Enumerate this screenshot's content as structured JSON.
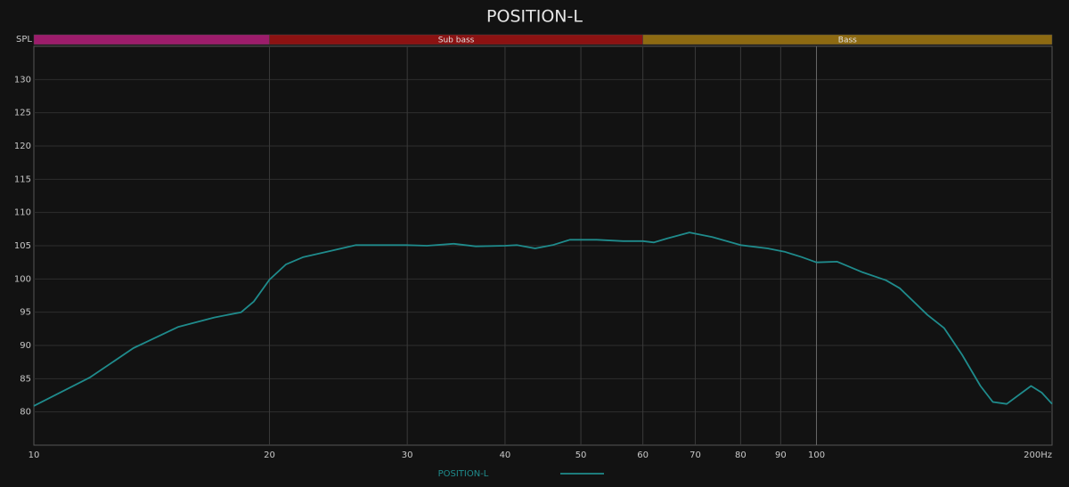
{
  "chart_data": {
    "type": "line",
    "title": "POSITION-L",
    "ylabel": "SPL",
    "x": [
      10,
      11.8,
      13.4,
      15.3,
      17.0,
      18.4,
      19.1,
      20,
      21.0,
      22.1,
      23.9,
      25.8,
      29.9,
      31.8,
      34.4,
      36.7,
      40,
      41.4,
      43.7,
      46.0,
      48.4,
      52.4,
      56.6,
      60,
      62,
      64.5,
      68.8,
      73.6,
      80,
      86.6,
      91,
      95.7,
      100,
      106.3,
      114.6,
      122.7,
      127.8,
      138.6,
      145.6,
      153.5,
      162,
      168,
      175,
      188,
      194,
      200
    ],
    "series": [
      {
        "name": "POSITION-L",
        "color": "#1f8b8c",
        "values": [
          80.9,
          85.2,
          89.6,
          92.8,
          94.2,
          95.0,
          96.6,
          99.9,
          102.2,
          103.3,
          104.2,
          105.1,
          105.1,
          105.0,
          105.3,
          104.9,
          105.0,
          105.1,
          104.6,
          105.1,
          105.9,
          105.9,
          105.7,
          105.7,
          105.5,
          106.1,
          107.0,
          106.3,
          105.1,
          104.6,
          104.1,
          103.3,
          102.5,
          102.6,
          101.0,
          99.8,
          98.6,
          94.6,
          92.6,
          88.6,
          83.9,
          81.5,
          81.2,
          83.9,
          82.9,
          81.2
        ]
      }
    ],
    "xlim": [
      10,
      200
    ],
    "xscale": "log",
    "xticks": [
      10,
      20,
      30,
      40,
      50,
      60,
      70,
      80,
      90,
      100,
      {
        "value": 200,
        "label": "200Hz"
      }
    ],
    "ylim": [
      75,
      135
    ],
    "yticks": [
      80,
      85,
      90,
      95,
      100,
      105,
      110,
      115,
      120,
      125,
      130
    ],
    "grid": true,
    "bands": [
      {
        "from": 10,
        "to": 20,
        "color": "#9c1c6b"
      },
      {
        "from": 20,
        "to": 60,
        "name": "Sub bass",
        "color": "#8c1212"
      },
      {
        "from": 60,
        "to": 200,
        "name": "Bass",
        "color": "#8d6a12"
      }
    ]
  }
}
